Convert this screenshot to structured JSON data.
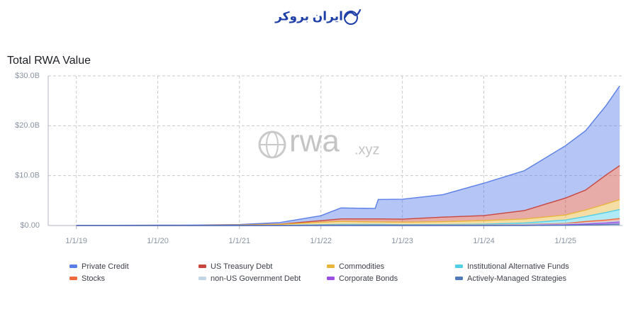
{
  "header": {
    "logo_text": "ایران بروکر"
  },
  "chart_data": {
    "type": "stacked_area",
    "title": "Total RWA Value",
    "watermark": "rwa",
    "watermark_suffix": ".xyz",
    "x": [
      "2019-01-01",
      "2019-07-01",
      "2020-01-01",
      "2020-07-01",
      "2021-01-01",
      "2021-07-01",
      "2022-01-01",
      "2022-04-01",
      "2022-09-01",
      "2022-09-15",
      "2023-01-01",
      "2023-07-01",
      "2024-01-01",
      "2024-07-01",
      "2025-01-01",
      "2025-04-01",
      "2025-07-01",
      "2025-09-01"
    ],
    "xlim": [
      "2018-08-28",
      "2025-09-13"
    ],
    "xticks": [
      {
        "value": "2019-01-01",
        "label": "1/1/19"
      },
      {
        "value": "2020-01-01",
        "label": "1/1/20"
      },
      {
        "value": "2021-01-01",
        "label": "1/1/21"
      },
      {
        "value": "2022-01-01",
        "label": "1/1/22"
      },
      {
        "value": "2023-01-01",
        "label": "1/1/23"
      },
      {
        "value": "2024-01-01",
        "label": "1/1/24"
      },
      {
        "value": "2025-01-01",
        "label": "1/1/25"
      }
    ],
    "ylim": [
      0,
      30
    ],
    "yticks": [
      {
        "value": 0,
        "label": "$0.00"
      },
      {
        "value": 10,
        "label": "$10.0B"
      },
      {
        "value": 20,
        "label": "$20.0B"
      },
      {
        "value": 30,
        "label": "$30.0B"
      }
    ],
    "grid": true,
    "series": [
      {
        "name": "Private Credit",
        "color": "#5b7fe8",
        "values": [
          0.04,
          0.03,
          0.04,
          0.05,
          0.09,
          0.32,
          1.0,
          2.2,
          2.1,
          3.9,
          4.0,
          4.5,
          6.5,
          8.0,
          10.5,
          11.9,
          13.9,
          16.0
        ]
      },
      {
        "name": "US Treasury Debt",
        "color": "#c9463f",
        "values": [
          0,
          0,
          0,
          0,
          0.01,
          0.05,
          0.3,
          0.5,
          0.6,
          0.6,
          0.6,
          0.9,
          1.0,
          1.7,
          3.4,
          4.0,
          5.8,
          6.8
        ]
      },
      {
        "name": "Commodities",
        "color": "#e9b43a",
        "values": [
          0.01,
          0.02,
          0.03,
          0.05,
          0.1,
          0.2,
          0.5,
          0.6,
          0.5,
          0.5,
          0.5,
          0.6,
          0.7,
          0.8,
          1.0,
          1.3,
          1.7,
          2.0
        ]
      },
      {
        "name": "Institutional Alternative Funds",
        "color": "#4fd0e6",
        "values": [
          0,
          0,
          0,
          0,
          0,
          0.02,
          0.1,
          0.15,
          0.15,
          0.15,
          0.1,
          0.1,
          0.15,
          0.3,
          0.7,
          1.0,
          1.5,
          1.8
        ]
      },
      {
        "name": "Stocks",
        "color": "#ef6b3d",
        "values": [
          0,
          0,
          0,
          0,
          0,
          0.01,
          0.02,
          0.02,
          0.02,
          0.02,
          0.02,
          0.03,
          0.03,
          0.05,
          0.1,
          0.3,
          0.4,
          0.5
        ]
      },
      {
        "name": "non-US Government Debt",
        "color": "#c3d6e6",
        "values": [
          0,
          0,
          0,
          0,
          0,
          0,
          0.05,
          0.05,
          0.05,
          0.05,
          0.05,
          0.05,
          0.1,
          0.1,
          0.15,
          0.2,
          0.2,
          0.2
        ]
      },
      {
        "name": "Corporate Bonds",
        "color": "#9b4fe3",
        "values": [
          0,
          0,
          0,
          0,
          0,
          0,
          0,
          0,
          0,
          0,
          0,
          0,
          0,
          0.05,
          0.1,
          0.2,
          0.3,
          0.4
        ]
      },
      {
        "name": "Actively-Managed Strategies",
        "color": "#4f79b8",
        "values": [
          0,
          0,
          0,
          0,
          0,
          0,
          0,
          0,
          0,
          0,
          0,
          0,
          0,
          0,
          0.05,
          0.1,
          0.2,
          0.3
        ]
      }
    ]
  }
}
